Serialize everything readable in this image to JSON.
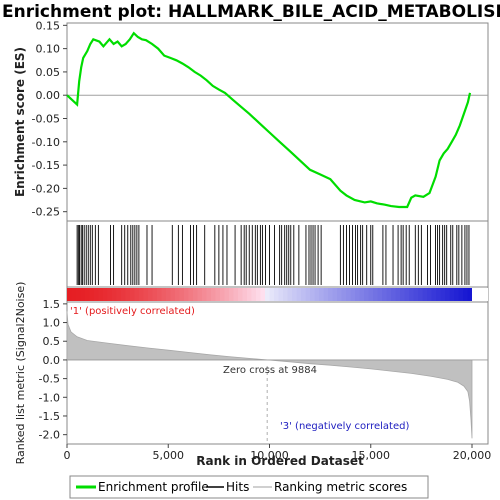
{
  "title": "Enrichment plot: HALLMARK_BILE_ACID_METABOLISM",
  "colors": {
    "es_line": "#00dd00",
    "hit_line": "#000000",
    "metric_fill": "#c0c0c0",
    "pos_label": "#e41a1c",
    "neg_label": "#2020c0",
    "zero_line": "#a0a0a0"
  },
  "chart_data": [
    {
      "type": "line",
      "panel": "enrichment-profile",
      "ylabel": "Enrichment score (ES)",
      "ylim": [
        -0.27,
        0.155
      ],
      "yticks": [
        "0.15",
        "0.10",
        "0.05",
        "0.00",
        "-0.05",
        "-0.10",
        "-0.15",
        "-0.20",
        "-0.25"
      ],
      "ytick_values": [
        0.15,
        0.1,
        0.05,
        0.0,
        -0.05,
        -0.1,
        -0.15,
        -0.2,
        -0.25
      ],
      "xlim": [
        0,
        20000
      ],
      "grid": false,
      "series": [
        {
          "name": "Enrichment profile",
          "x": [
            0,
            500,
            600,
            700,
            800,
            1000,
            1150,
            1300,
            1600,
            1800,
            2100,
            2300,
            2500,
            2700,
            2900,
            3100,
            3300,
            3500,
            3700,
            3900,
            4200,
            4500,
            4800,
            5100,
            5400,
            5700,
            6000,
            6300,
            6600,
            6900,
            7200,
            7500,
            7800,
            8200,
            8600,
            9000,
            9500,
            10000,
            10500,
            11000,
            11500,
            12000,
            12500,
            13000,
            13500,
            13800,
            14200,
            14700,
            15000,
            15300,
            15700,
            16000,
            16400,
            16800,
            17000,
            17200,
            17600,
            17900,
            18200,
            18400,
            18600,
            18800,
            19000,
            19200,
            19400,
            19600,
            19800,
            19900
          ],
          "y": [
            0.0,
            -0.02,
            0.03,
            0.06,
            0.08,
            0.095,
            0.11,
            0.12,
            0.115,
            0.105,
            0.12,
            0.11,
            0.115,
            0.105,
            0.11,
            0.12,
            0.133,
            0.125,
            0.12,
            0.118,
            0.11,
            0.1,
            0.085,
            0.08,
            0.075,
            0.068,
            0.06,
            0.05,
            0.042,
            0.032,
            0.02,
            0.012,
            0.005,
            -0.01,
            -0.025,
            -0.04,
            -0.06,
            -0.08,
            -0.1,
            -0.12,
            -0.14,
            -0.16,
            -0.17,
            -0.18,
            -0.205,
            -0.215,
            -0.225,
            -0.23,
            -0.228,
            -0.232,
            -0.235,
            -0.238,
            -0.24,
            -0.24,
            -0.22,
            -0.215,
            -0.218,
            -0.21,
            -0.175,
            -0.14,
            -0.125,
            -0.115,
            -0.1,
            -0.085,
            -0.065,
            -0.04,
            -0.015,
            0.005
          ]
        }
      ]
    },
    {
      "type": "scatter",
      "panel": "hits",
      "series": [
        {
          "name": "Hits",
          "x": [
            500,
            560,
            620,
            700,
            760,
            850,
            950,
            1050,
            1150,
            1250,
            1400,
            1550,
            2150,
            2300,
            2700,
            2850,
            3000,
            3150,
            3250,
            3350,
            3450,
            3550,
            3950,
            4200,
            5200,
            5500,
            5700,
            6100,
            6250,
            6400,
            6800,
            7300,
            7500,
            7700,
            7900,
            8300,
            8600,
            8750,
            8850,
            9000,
            9150,
            9300,
            9400,
            9550,
            9650,
            9800,
            10000,
            10250,
            10500,
            10600,
            10750,
            10850,
            10950,
            11050,
            11200,
            11450,
            11800,
            11950,
            12050,
            12150,
            12250,
            12400,
            12550,
            13500,
            13650,
            13800,
            13950,
            14100,
            14250,
            14350,
            14500,
            14600,
            14800,
            15000,
            15100,
            15600,
            15750,
            16100,
            16350,
            16500,
            16600,
            16750,
            16900,
            17200,
            17350,
            17500,
            17800,
            17950,
            18200,
            18300,
            18400,
            18550,
            18650,
            18750,
            18950,
            19050,
            19250,
            19350,
            19500,
            19650,
            19750,
            19850
          ]
        }
      ]
    },
    {
      "type": "area",
      "panel": "ranked-list-metric",
      "ylabel": "Ranked list metric (Signal2Noise)",
      "xlabel": "Rank in Ordered Dataset",
      "ylim": [
        -2.25,
        1.55
      ],
      "yticks": [
        "1.5",
        "1.0",
        "0.5",
        "0.0",
        "-0.5",
        "-1.0",
        "-1.5",
        "-2.0"
      ],
      "ytick_values": [
        1.5,
        1.0,
        0.5,
        0.0,
        -0.5,
        -1.0,
        -1.5,
        -2.0
      ],
      "xlim": [
        0,
        20000
      ],
      "xticks": [
        "0",
        "5,000",
        "10,000",
        "15,000",
        "20,000"
      ],
      "xtick_values": [
        0,
        5000,
        10000,
        15000,
        20000
      ],
      "series": [
        {
          "name": "Ranking metric scores",
          "x": [
            0,
            50,
            200,
            500,
            1000,
            2000,
            3000,
            4000,
            5000,
            6000,
            7000,
            8000,
            9000,
            9884,
            11000,
            12000,
            13000,
            14000,
            15000,
            16000,
            17000,
            18000,
            18800,
            19300,
            19600,
            19800,
            19880,
            19950,
            20000
          ],
          "y": [
            1.3,
            0.95,
            0.75,
            0.62,
            0.52,
            0.45,
            0.38,
            0.32,
            0.26,
            0.2,
            0.14,
            0.09,
            0.04,
            0.0,
            -0.05,
            -0.1,
            -0.14,
            -0.19,
            -0.24,
            -0.3,
            -0.36,
            -0.44,
            -0.52,
            -0.6,
            -0.7,
            -0.85,
            -1.1,
            -1.6,
            -2.1
          ]
        }
      ],
      "annotations": {
        "zero_cross": "Zero cross at 9884",
        "pos_label": "'1' (positively correlated)",
        "neg_label": "'3' (negatively correlated)"
      }
    }
  ],
  "legend": {
    "items": [
      {
        "label": "Enrichment profile",
        "color": "#00dd00"
      },
      {
        "label": "Hits",
        "color": "#000000"
      },
      {
        "label": "Ranking metric scores",
        "color": "#c0c0c0"
      }
    ]
  }
}
